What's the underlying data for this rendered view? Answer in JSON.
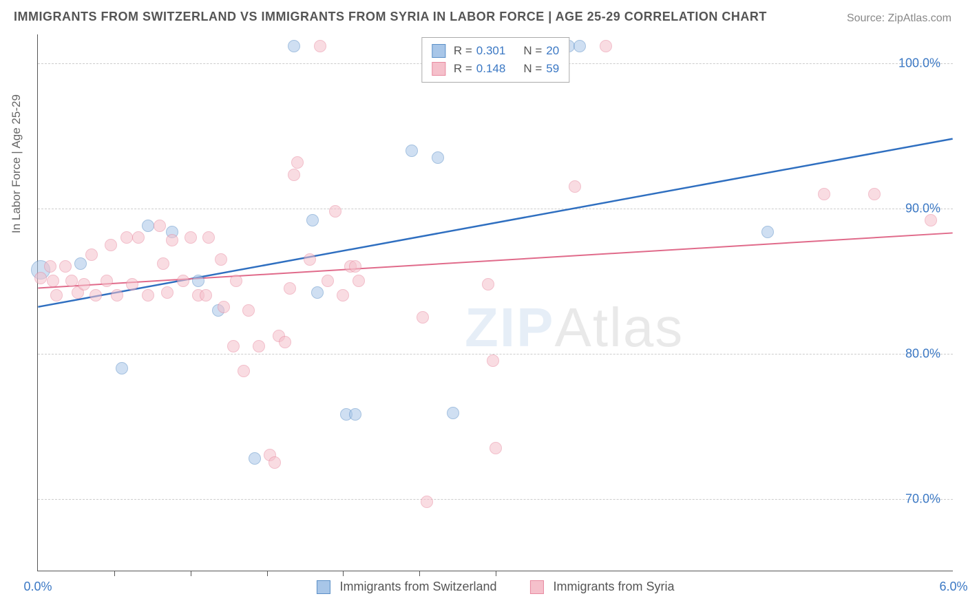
{
  "title": "IMMIGRANTS FROM SWITZERLAND VS IMMIGRANTS FROM SYRIA IN LABOR FORCE | AGE 25-29 CORRELATION CHART",
  "source": "Source: ZipAtlas.com",
  "y_axis_title": "In Labor Force | Age 25-29",
  "watermark_a": "ZIP",
  "watermark_b": "Atlas",
  "chart": {
    "type": "scatter-with-trend",
    "xlim": [
      0.0,
      6.0
    ],
    "ylim": [
      65.0,
      102.0
    ],
    "x_ticks": [
      0.0,
      6.0
    ],
    "x_tick_labels": [
      "0.0%",
      "6.0%"
    ],
    "x_minor_ticks": [
      0.5,
      1.0,
      1.5,
      2.0,
      2.5,
      3.0
    ],
    "y_ticks": [
      70.0,
      80.0,
      90.0,
      100.0
    ],
    "y_tick_labels": [
      "70.0%",
      "80.0%",
      "90.0%",
      "100.0%"
    ],
    "background_color": "#ffffff",
    "grid_color": "#cccccc",
    "axis_color": "#555555",
    "marker_radius": 9,
    "marker_opacity": 0.55,
    "series": [
      {
        "key": "switzerland",
        "label": "Immigrants from Switzerland",
        "color_fill": "#a8c6e8",
        "color_stroke": "#5b8fc7",
        "trend_color": "#2f6fc0",
        "trend_width": 2.5,
        "R": "0.301",
        "N": "20",
        "trend": {
          "x0": 0.0,
          "y0": 83.2,
          "x1": 6.0,
          "y1": 94.8
        },
        "points": [
          {
            "x": 0.02,
            "y": 85.8,
            "r": 14
          },
          {
            "x": 0.28,
            "y": 86.2
          },
          {
            "x": 0.55,
            "y": 79.0
          },
          {
            "x": 0.72,
            "y": 88.8
          },
          {
            "x": 0.88,
            "y": 88.4
          },
          {
            "x": 1.05,
            "y": 85.0
          },
          {
            "x": 1.18,
            "y": 83.0
          },
          {
            "x": 1.42,
            "y": 72.8
          },
          {
            "x": 1.68,
            "y": 101.2
          },
          {
            "x": 1.8,
            "y": 89.2
          },
          {
            "x": 1.83,
            "y": 84.2
          },
          {
            "x": 2.02,
            "y": 75.8
          },
          {
            "x": 2.08,
            "y": 75.8
          },
          {
            "x": 2.45,
            "y": 94.0
          },
          {
            "x": 2.62,
            "y": 93.5
          },
          {
            "x": 2.72,
            "y": 75.9
          },
          {
            "x": 3.48,
            "y": 101.2
          },
          {
            "x": 3.55,
            "y": 101.2
          },
          {
            "x": 4.78,
            "y": 88.4
          }
        ]
      },
      {
        "key": "syria",
        "label": "Immigrants from Syria",
        "color_fill": "#f5c0cb",
        "color_stroke": "#e88aa0",
        "trend_color": "#e06a8a",
        "trend_width": 2.0,
        "R": "0.148",
        "N": "59",
        "trend": {
          "x0": 0.0,
          "y0": 84.5,
          "x1": 6.0,
          "y1": 88.3
        },
        "points": [
          {
            "x": 0.02,
            "y": 85.2
          },
          {
            "x": 0.08,
            "y": 86.0
          },
          {
            "x": 0.1,
            "y": 85.0
          },
          {
            "x": 0.12,
            "y": 84.0
          },
          {
            "x": 0.18,
            "y": 86.0
          },
          {
            "x": 0.22,
            "y": 85.0
          },
          {
            "x": 0.26,
            "y": 84.2
          },
          {
            "x": 0.3,
            "y": 84.8
          },
          {
            "x": 0.35,
            "y": 86.8
          },
          {
            "x": 0.38,
            "y": 84.0
          },
          {
            "x": 0.45,
            "y": 85.0
          },
          {
            "x": 0.48,
            "y": 87.5
          },
          {
            "x": 0.52,
            "y": 84.0
          },
          {
            "x": 0.58,
            "y": 88.0
          },
          {
            "x": 0.62,
            "y": 84.8
          },
          {
            "x": 0.66,
            "y": 88.0
          },
          {
            "x": 0.72,
            "y": 84.0
          },
          {
            "x": 0.8,
            "y": 88.8
          },
          {
            "x": 0.82,
            "y": 86.2
          },
          {
            "x": 0.85,
            "y": 84.2
          },
          {
            "x": 0.88,
            "y": 87.8
          },
          {
            "x": 0.95,
            "y": 85.0
          },
          {
            "x": 1.0,
            "y": 88.0
          },
          {
            "x": 1.05,
            "y": 84.0
          },
          {
            "x": 1.1,
            "y": 84.0
          },
          {
            "x": 1.12,
            "y": 88.0
          },
          {
            "x": 1.2,
            "y": 86.5
          },
          {
            "x": 1.22,
            "y": 83.2
          },
          {
            "x": 1.28,
            "y": 80.5
          },
          {
            "x": 1.3,
            "y": 85.0
          },
          {
            "x": 1.35,
            "y": 78.8
          },
          {
            "x": 1.38,
            "y": 83.0
          },
          {
            "x": 1.45,
            "y": 80.5
          },
          {
            "x": 1.52,
            "y": 73.0
          },
          {
            "x": 1.55,
            "y": 72.5
          },
          {
            "x": 1.58,
            "y": 81.2
          },
          {
            "x": 1.62,
            "y": 80.8
          },
          {
            "x": 1.65,
            "y": 84.5
          },
          {
            "x": 1.68,
            "y": 92.3
          },
          {
            "x": 1.7,
            "y": 93.2
          },
          {
            "x": 1.78,
            "y": 86.5
          },
          {
            "x": 1.85,
            "y": 101.2
          },
          {
            "x": 1.9,
            "y": 85.0
          },
          {
            "x": 1.95,
            "y": 89.8
          },
          {
            "x": 2.0,
            "y": 84.0
          },
          {
            "x": 2.05,
            "y": 86.0
          },
          {
            "x": 2.08,
            "y": 86.0
          },
          {
            "x": 2.1,
            "y": 85.0
          },
          {
            "x": 2.52,
            "y": 82.5
          },
          {
            "x": 2.55,
            "y": 69.8
          },
          {
            "x": 2.95,
            "y": 84.8
          },
          {
            "x": 2.98,
            "y": 79.5
          },
          {
            "x": 3.0,
            "y": 73.5
          },
          {
            "x": 3.52,
            "y": 91.5
          },
          {
            "x": 3.72,
            "y": 101.2
          },
          {
            "x": 5.15,
            "y": 91.0
          },
          {
            "x": 5.48,
            "y": 91.0
          },
          {
            "x": 5.85,
            "y": 89.2
          }
        ]
      }
    ]
  },
  "legend_stats_rows": [
    {
      "swatch_fill": "#a8c6e8",
      "swatch_stroke": "#5b8fc7",
      "r_label": "R =",
      "r_val": "0.301",
      "n_label": "N =",
      "n_val": "20"
    },
    {
      "swatch_fill": "#f5c0cb",
      "swatch_stroke": "#e88aa0",
      "r_label": "R =",
      "r_val": "0.148",
      "n_label": "N =",
      "n_val": "59"
    }
  ]
}
